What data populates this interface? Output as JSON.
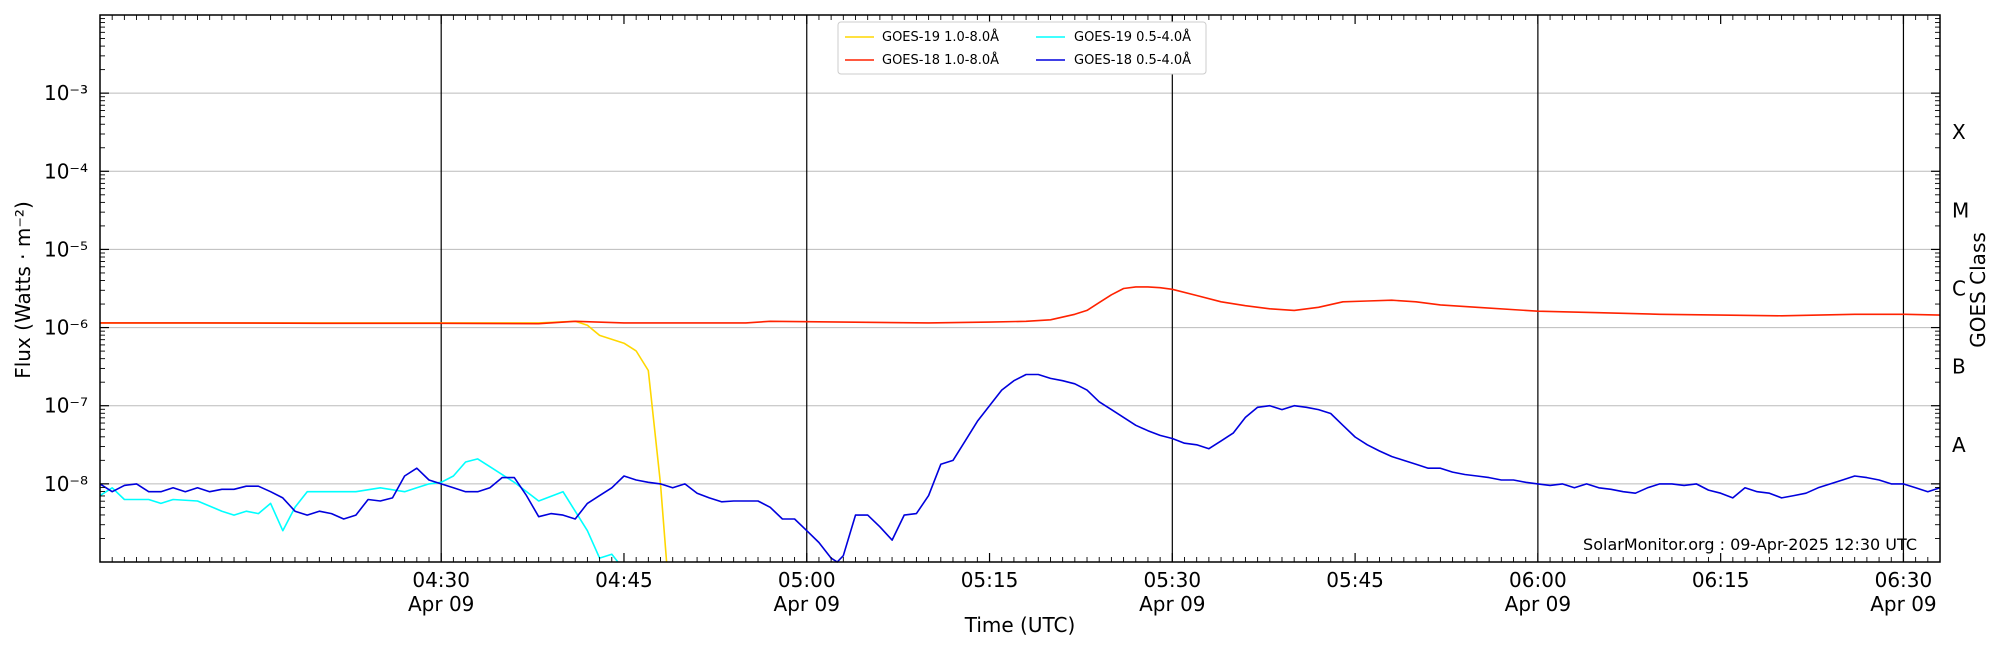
{
  "chart_data": {
    "type": "line",
    "xlabel": "Time (UTC)",
    "ylabel": "Flux (Watts · m⁻²)",
    "ylabel_right": "GOES Class",
    "xlim": [
      "04:02",
      "06:33"
    ],
    "ylim_log10": [
      -9,
      -2
    ],
    "yscale": "log",
    "y_ticks": [
      {
        "exp": -8,
        "label": "10⁻⁸"
      },
      {
        "exp": -7,
        "label": "10⁻⁷"
      },
      {
        "exp": -6,
        "label": "10⁻⁶"
      },
      {
        "exp": -5,
        "label": "10⁻⁵"
      },
      {
        "exp": -4,
        "label": "10⁻⁴"
      },
      {
        "exp": -3,
        "label": "10⁻³"
      }
    ],
    "x_ticks": [
      {
        "t": "04:30",
        "label": "04:30",
        "sub": "Apr 09"
      },
      {
        "t": "04:45",
        "label": "04:45",
        "sub": ""
      },
      {
        "t": "05:00",
        "label": "05:00",
        "sub": "Apr 09"
      },
      {
        "t": "05:15",
        "label": "05:15",
        "sub": ""
      },
      {
        "t": "05:30",
        "label": "05:30",
        "sub": "Apr 09"
      },
      {
        "t": "05:45",
        "label": "05:45",
        "sub": ""
      },
      {
        "t": "06:00",
        "label": "06:00",
        "sub": "Apr 09"
      },
      {
        "t": "06:15",
        "label": "06:15",
        "sub": ""
      },
      {
        "t": "06:30",
        "label": "06:30",
        "sub": "Apr 09"
      }
    ],
    "vlines": [
      "04:30",
      "05:00",
      "05:30",
      "06:00",
      "06:30"
    ],
    "goes_classes": [
      {
        "label": "A",
        "exp": -7.5
      },
      {
        "label": "B",
        "exp": -6.5
      },
      {
        "label": "C",
        "exp": -5.5
      },
      {
        "label": "M",
        "exp": -4.5
      },
      {
        "label": "X",
        "exp": -3.5
      }
    ],
    "legend_position": "top-center",
    "watermark": "SolarMonitor.org : 09-Apr-2025 12:30 UTC",
    "series": [
      {
        "name": "GOES-19 1.0-8.0Å",
        "color": "#FFD700",
        "points": [
          [
            "04:02",
            -5.94
          ],
          [
            "04:10",
            -5.94
          ],
          [
            "04:20",
            -5.94
          ],
          [
            "04:30",
            -5.94
          ],
          [
            "04:38",
            -5.94
          ],
          [
            "04:41",
            -5.92
          ],
          [
            "04:42",
            -5.97
          ],
          [
            "04:43",
            -6.1
          ],
          [
            "04:45",
            -6.2
          ],
          [
            "04:46",
            -6.3
          ],
          [
            "04:47",
            -6.55
          ],
          [
            "04:48",
            -8.0
          ],
          [
            "04:48.5",
            -9.0
          ]
        ]
      },
      {
        "name": "GOES-18 1.0-8.0Å",
        "color": "#FF2200",
        "points": [
          [
            "04:02",
            -5.94
          ],
          [
            "04:10",
            -5.94
          ],
          [
            "04:20",
            -5.945
          ],
          [
            "04:30",
            -5.945
          ],
          [
            "04:38",
            -5.95
          ],
          [
            "04:41",
            -5.92
          ],
          [
            "04:45",
            -5.94
          ],
          [
            "04:50",
            -5.94
          ],
          [
            "04:55",
            -5.94
          ],
          [
            "04:57",
            -5.92
          ],
          [
            "05:03",
            -5.93
          ],
          [
            "05:10",
            -5.94
          ],
          [
            "05:15",
            -5.93
          ],
          [
            "05:18",
            -5.92
          ],
          [
            "05:20",
            -5.9
          ],
          [
            "05:22",
            -5.83
          ],
          [
            "05:23",
            -5.78
          ],
          [
            "05:24",
            -5.68
          ],
          [
            "05:25",
            -5.58
          ],
          [
            "05:26",
            -5.5
          ],
          [
            "05:27",
            -5.48
          ],
          [
            "05:28",
            -5.48
          ],
          [
            "05:29",
            -5.49
          ],
          [
            "05:30",
            -5.51
          ],
          [
            "05:32",
            -5.59
          ],
          [
            "05:34",
            -5.67
          ],
          [
            "05:36",
            -5.72
          ],
          [
            "05:38",
            -5.76
          ],
          [
            "05:40",
            -5.78
          ],
          [
            "05:42",
            -5.74
          ],
          [
            "05:44",
            -5.67
          ],
          [
            "05:46",
            -5.66
          ],
          [
            "05:48",
            -5.65
          ],
          [
            "05:50",
            -5.67
          ],
          [
            "05:52",
            -5.71
          ],
          [
            "05:55",
            -5.74
          ],
          [
            "06:00",
            -5.79
          ],
          [
            "06:05",
            -5.81
          ],
          [
            "06:10",
            -5.83
          ],
          [
            "06:15",
            -5.84
          ],
          [
            "06:20",
            -5.85
          ],
          [
            "06:23",
            -5.84
          ],
          [
            "06:26",
            -5.83
          ],
          [
            "06:30",
            -5.83
          ],
          [
            "06:33",
            -5.84
          ]
        ]
      },
      {
        "name": "GOES-19 0.5-4.0Å",
        "color": "#00FFFF",
        "points": [
          [
            "04:02",
            -8.15
          ],
          [
            "04:03",
            -8.05
          ],
          [
            "04:04",
            -8.2
          ],
          [
            "04:06",
            -8.2
          ],
          [
            "04:07",
            -8.25
          ],
          [
            "04:08",
            -8.2
          ],
          [
            "04:10",
            -8.22
          ],
          [
            "04:12",
            -8.35
          ],
          [
            "04:13",
            -8.4
          ],
          [
            "04:14",
            -8.35
          ],
          [
            "04:15",
            -8.38
          ],
          [
            "04:16",
            -8.25
          ],
          [
            "04:17",
            -8.6
          ],
          [
            "04:18",
            -8.3
          ],
          [
            "04:19",
            -8.1
          ],
          [
            "04:21",
            -8.1
          ],
          [
            "04:23",
            -8.1
          ],
          [
            "04:25",
            -8.05
          ],
          [
            "04:27",
            -8.1
          ],
          [
            "04:28",
            -8.05
          ],
          [
            "04:29",
            -8.0
          ],
          [
            "04:30",
            -7.98
          ],
          [
            "04:31",
            -7.9
          ],
          [
            "04:32",
            -7.72
          ],
          [
            "04:33",
            -7.68
          ],
          [
            "04:34",
            -7.78
          ],
          [
            "04:36",
            -7.98
          ],
          [
            "04:38",
            -8.22
          ],
          [
            "04:40",
            -8.1
          ],
          [
            "04:41",
            -8.35
          ],
          [
            "04:42",
            -8.6
          ],
          [
            "04:43",
            -8.95
          ],
          [
            "04:44",
            -8.9
          ],
          [
            "04:44.5",
            -9.0
          ]
        ]
      },
      {
        "name": "GOES-18 0.5-4.0Å",
        "color": "#0000DD",
        "points": [
          [
            "04:02",
            -8.0
          ],
          [
            "04:03",
            -8.1
          ],
          [
            "04:04",
            -8.02
          ],
          [
            "04:05",
            -8.0
          ],
          [
            "04:06",
            -8.1
          ],
          [
            "04:07",
            -8.1
          ],
          [
            "04:08",
            -8.05
          ],
          [
            "04:09",
            -8.1
          ],
          [
            "04:10",
            -8.05
          ],
          [
            "04:11",
            -8.1
          ],
          [
            "04:12",
            -8.07
          ],
          [
            "04:13",
            -8.07
          ],
          [
            "04:14",
            -8.03
          ],
          [
            "04:15",
            -8.03
          ],
          [
            "04:16",
            -8.1
          ],
          [
            "04:17",
            -8.18
          ],
          [
            "04:18",
            -8.35
          ],
          [
            "04:19",
            -8.4
          ],
          [
            "04:20",
            -8.35
          ],
          [
            "04:21",
            -8.38
          ],
          [
            "04:22",
            -8.45
          ],
          [
            "04:23",
            -8.4
          ],
          [
            "04:24",
            -8.2
          ],
          [
            "04:25",
            -8.22
          ],
          [
            "04:26",
            -8.18
          ],
          [
            "04:27",
            -7.9
          ],
          [
            "04:28",
            -7.8
          ],
          [
            "04:29",
            -7.95
          ],
          [
            "04:30",
            -8.0
          ],
          [
            "04:31",
            -8.05
          ],
          [
            "04:32",
            -8.1
          ],
          [
            "04:33",
            -8.1
          ],
          [
            "04:34",
            -8.05
          ],
          [
            "04:35",
            -7.92
          ],
          [
            "04:36",
            -7.92
          ],
          [
            "04:37",
            -8.15
          ],
          [
            "04:38",
            -8.42
          ],
          [
            "04:39",
            -8.38
          ],
          [
            "04:40",
            -8.4
          ],
          [
            "04:41",
            -8.45
          ],
          [
            "04:42",
            -8.25
          ],
          [
            "04:43",
            -8.15
          ],
          [
            "04:44",
            -8.05
          ],
          [
            "04:45",
            -7.9
          ],
          [
            "04:46",
            -7.95
          ],
          [
            "04:47",
            -7.98
          ],
          [
            "04:48",
            -8.0
          ],
          [
            "04:49",
            -8.05
          ],
          [
            "04:50",
            -8.0
          ],
          [
            "04:51",
            -8.12
          ],
          [
            "04:52",
            -8.18
          ],
          [
            "04:53",
            -8.23
          ],
          [
            "04:54",
            -8.22
          ],
          [
            "04:55",
            -8.22
          ],
          [
            "04:56",
            -8.22
          ],
          [
            "04:57",
            -8.3
          ],
          [
            "04:58",
            -8.45
          ],
          [
            "04:59",
            -8.45
          ],
          [
            "05:00",
            -8.6
          ],
          [
            "05:01",
            -8.75
          ],
          [
            "05:02",
            -8.95
          ],
          [
            "05:02.5",
            -9.0
          ],
          [
            "05:03",
            -8.92
          ],
          [
            "05:04",
            -8.4
          ],
          [
            "05:05",
            -8.4
          ],
          [
            "05:06",
            -8.55
          ],
          [
            "05:07",
            -8.72
          ],
          [
            "05:08",
            -8.4
          ],
          [
            "05:09",
            -8.38
          ],
          [
            "05:10",
            -8.15
          ],
          [
            "05:11",
            -7.75
          ],
          [
            "05:12",
            -7.7
          ],
          [
            "05:13",
            -7.45
          ],
          [
            "05:14",
            -7.2
          ],
          [
            "05:15",
            -7.0
          ],
          [
            "05:16",
            -6.8
          ],
          [
            "05:17",
            -6.68
          ],
          [
            "05:18",
            -6.6
          ],
          [
            "05:19",
            -6.6
          ],
          [
            "05:20",
            -6.65
          ],
          [
            "05:21",
            -6.68
          ],
          [
            "05:22",
            -6.72
          ],
          [
            "05:23",
            -6.8
          ],
          [
            "05:24",
            -6.95
          ],
          [
            "05:25",
            -7.05
          ],
          [
            "05:26",
            -7.15
          ],
          [
            "05:27",
            -7.25
          ],
          [
            "05:28",
            -7.32
          ],
          [
            "05:29",
            -7.38
          ],
          [
            "05:30",
            -7.42
          ],
          [
            "05:31",
            -7.48
          ],
          [
            "05:32",
            -7.5
          ],
          [
            "05:33",
            -7.55
          ],
          [
            "05:34",
            -7.45
          ],
          [
            "05:35",
            -7.35
          ],
          [
            "05:36",
            -7.15
          ],
          [
            "05:37",
            -7.02
          ],
          [
            "05:38",
            -7.0
          ],
          [
            "05:39",
            -7.05
          ],
          [
            "05:40",
            -7.0
          ],
          [
            "05:41",
            -7.02
          ],
          [
            "05:42",
            -7.05
          ],
          [
            "05:43",
            -7.1
          ],
          [
            "05:44",
            -7.25
          ],
          [
            "05:45",
            -7.4
          ],
          [
            "05:46",
            -7.5
          ],
          [
            "05:47",
            -7.58
          ],
          [
            "05:48",
            -7.65
          ],
          [
            "05:49",
            -7.7
          ],
          [
            "05:50",
            -7.75
          ],
          [
            "05:51",
            -7.8
          ],
          [
            "05:52",
            -7.8
          ],
          [
            "05:53",
            -7.85
          ],
          [
            "05:54",
            -7.88
          ],
          [
            "05:55",
            -7.9
          ],
          [
            "05:56",
            -7.92
          ],
          [
            "05:57",
            -7.95
          ],
          [
            "05:58",
            -7.95
          ],
          [
            "05:59",
            -7.98
          ],
          [
            "06:00",
            -8.0
          ],
          [
            "06:01",
            -8.02
          ],
          [
            "06:02",
            -8.0
          ],
          [
            "06:03",
            -8.05
          ],
          [
            "06:04",
            -8.0
          ],
          [
            "06:05",
            -8.05
          ],
          [
            "06:06",
            -8.07
          ],
          [
            "06:07",
            -8.1
          ],
          [
            "06:08",
            -8.12
          ],
          [
            "06:09",
            -8.05
          ],
          [
            "06:10",
            -8.0
          ],
          [
            "06:11",
            -8.0
          ],
          [
            "06:12",
            -8.02
          ],
          [
            "06:13",
            -8.0
          ],
          [
            "06:14",
            -8.08
          ],
          [
            "06:15",
            -8.12
          ],
          [
            "06:16",
            -8.18
          ],
          [
            "06:17",
            -8.05
          ],
          [
            "06:18",
            -8.1
          ],
          [
            "06:19",
            -8.12
          ],
          [
            "06:20",
            -8.18
          ],
          [
            "06:21",
            -8.15
          ],
          [
            "06:22",
            -8.12
          ],
          [
            "06:23",
            -8.05
          ],
          [
            "06:24",
            -8.0
          ],
          [
            "06:25",
            -7.95
          ],
          [
            "06:26",
            -7.9
          ],
          [
            "06:27",
            -7.92
          ],
          [
            "06:28",
            -7.95
          ],
          [
            "06:29",
            -8.0
          ],
          [
            "06:30",
            -8.0
          ],
          [
            "06:31",
            -8.05
          ],
          [
            "06:32",
            -8.1
          ],
          [
            "06:33",
            -8.05
          ]
        ]
      }
    ]
  }
}
